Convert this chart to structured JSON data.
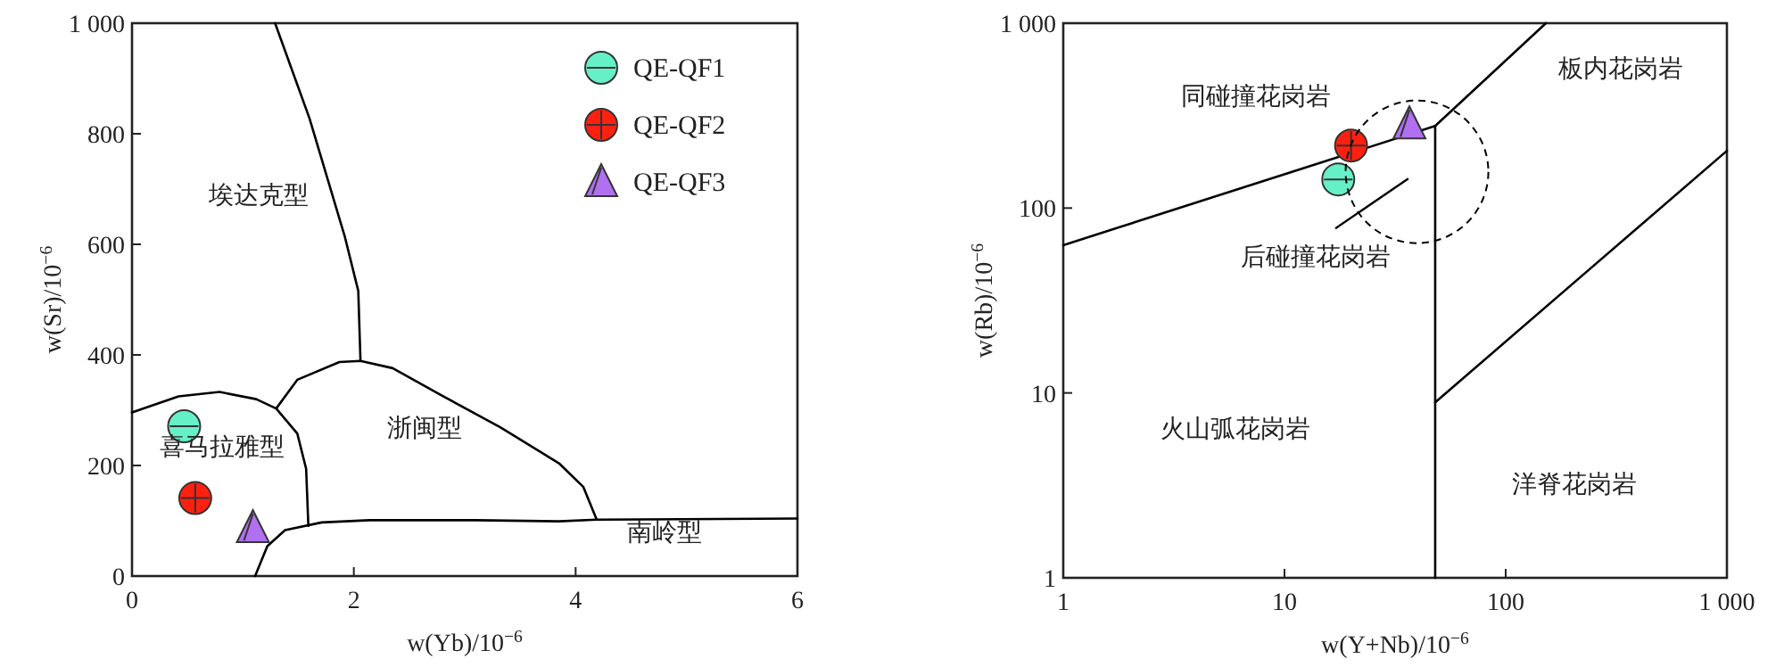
{
  "chart_data": [
    {
      "type": "scatter",
      "xlabel": "w(Yb)/10$^{−6}$",
      "ylabel": "w(Sr)/10$^{−6}$",
      "xlim": [
        0,
        6
      ],
      "ylim": [
        0,
        1000
      ],
      "xticks": [
        0,
        2,
        4,
        6
      ],
      "yticks": [
        0,
        200,
        400,
        600,
        800,
        {
          "value": 1000,
          "label": "1 000"
        }
      ],
      "legend": "top right",
      "series": [
        {
          "type": "line",
          "color": "#000000",
          "marker": "none",
          "x": [
            1.29,
            1.6,
            1.92,
            2.04,
            2.06
          ],
          "values": [
            1000,
            828,
            613,
            516,
            389
          ]
        },
        {
          "type": "line",
          "color": "#000000",
          "marker": "none",
          "x": [
            1.3,
            1.49,
            1.87,
            2.06,
            2.35,
            2.78,
            3.32,
            3.85,
            4.07,
            4.19
          ],
          "values": [
            303,
            355,
            387,
            389,
            376,
            328,
            269,
            204,
            161,
            102
          ]
        },
        {
          "type": "line",
          "color": "#000000",
          "marker": "none",
          "x": [
            0,
            0.42,
            0.79,
            1.12,
            1.3,
            1.49,
            1.57,
            1.59
          ],
          "values": [
            296,
            325,
            333,
            320,
            303,
            258,
            194,
            91
          ]
        },
        {
          "type": "line",
          "color": "#000000",
          "marker": "none",
          "x": [
            1.11,
            1.22,
            1.38,
            1.71,
            2.14,
            3.1,
            3.85,
            4.19,
            6
          ],
          "values": [
            0,
            54,
            83,
            97,
            101,
            101,
            99,
            102,
            104
          ]
        },
        {
          "type": "scatter",
          "name": "QE-QF1",
          "color": "#66f0c8",
          "marker": "circle",
          "x": [
            0.47
          ],
          "values": [
            271
          ]
        },
        {
          "type": "scatter",
          "name": "QE-QF2",
          "color": "#ff2010",
          "marker": "circle",
          "x": [
            0.57
          ],
          "values": [
            141
          ]
        },
        {
          "type": "scatter",
          "name": "QE-QF3",
          "color": "#b070f0",
          "marker": "triangle",
          "x": [
            1.09
          ],
          "values": [
            87
          ]
        }
      ],
      "annotations": [
        "埃达克型",
        "浙闽型",
        "喜马拉雅型",
        "南岭型"
      ]
    },
    {
      "type": "scatter",
      "xlabel": "w(Y+Nb)/10$^{−6}$",
      "ylabel": "w(Rb)/10$^{−6}$",
      "log": "xy",
      "xlim": [
        1,
        1000
      ],
      "ylim": [
        1,
        1000
      ],
      "xticks": [
        1,
        10,
        100,
        {
          "value": 1000,
          "label": "1 000"
        }
      ],
      "yticks": [
        1,
        10,
        100,
        {
          "value": 1000,
          "label": "1 000"
        }
      ],
      "legend": false,
      "series": [
        {
          "type": "line",
          "color": "#000000",
          "marker": "none",
          "x": [
            1,
            48,
            152
          ],
          "values": [
            63,
            278,
            1000
          ]
        },
        {
          "type": "line",
          "color": "#000000",
          "marker": "none",
          "x": [
            48,
            48
          ],
          "values": [
            278,
            1
          ]
        },
        {
          "type": "line",
          "color": "#000000",
          "marker": "none",
          "x": [
            48,
            1000
          ],
          "values": [
            8.9,
            204
          ]
        },
        {
          "type": "scatter",
          "color": "#66f0c8",
          "marker": "circle",
          "x": [
            17.5
          ],
          "values": [
            143
          ]
        },
        {
          "type": "scatter",
          "color": "#ff2010",
          "marker": "circle",
          "x": [
            20.0
          ],
          "values": [
            218
          ]
        },
        {
          "type": "scatter",
          "color": "#b070f0",
          "marker": "triangle",
          "x": [
            36.7
          ],
          "values": [
            284
          ]
        }
      ],
      "annotations": [
        "同碰撞花岗岩",
        "板内花岗岩",
        "后碰撞花岗岩",
        "火山弧花岗岩",
        "洋脊花岗岩"
      ]
    }
  ]
}
